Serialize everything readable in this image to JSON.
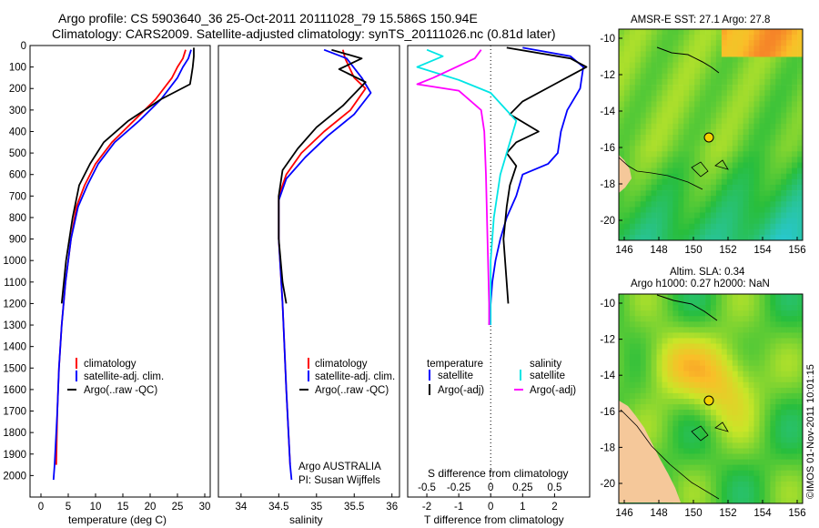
{
  "title": {
    "line1": "Argo profile: CS 5903640_36 25-Oct-2011 20111028_79 15.586S 150.94E",
    "line2": "Climatology: CARS2009. Satellite-adjusted climatology: synTS_20111026.nc (0.81d later)"
  },
  "credit": "©IMOS 01-Nov-2011 10:01:15",
  "colors": {
    "climatology": "#ff0000",
    "satellite": "#0000ff",
    "argo": "#000000",
    "salinity_sat": "#00e5e5",
    "salinity_argo": "#ff00ff"
  },
  "chart_data": [
    {
      "type": "line",
      "name": "temperature-profile",
      "xlabel": "temperature (deg C)",
      "ylabel": "",
      "xlim": [
        -2,
        31
      ],
      "ylim": [
        2100,
        0
      ],
      "xticks": [
        0,
        5,
        10,
        15,
        20,
        25,
        30
      ],
      "yticks": [
        0,
        100,
        200,
        300,
        400,
        500,
        600,
        700,
        800,
        900,
        1000,
        1100,
        1200,
        1300,
        1400,
        1500,
        1600,
        1700,
        1800,
        1900,
        2000
      ],
      "legend": [
        "climatology",
        "satellite-adj. clim.",
        "Argo(..raw -QC)"
      ],
      "series": [
        {
          "name": "climatology",
          "x": [
            26.5,
            26,
            25,
            24,
            21,
            17,
            13,
            10,
            8,
            6.5,
            5.5,
            4.5,
            3.8,
            3.3,
            3,
            2.8
          ],
          "y": [
            20,
            60,
            100,
            150,
            250,
            350,
            450,
            550,
            650,
            750,
            900,
            1100,
            1300,
            1500,
            1700,
            1950
          ]
        },
        {
          "name": "satellite-adj. clim.",
          "x": [
            27.5,
            27,
            26,
            25,
            22,
            18,
            13.5,
            10.5,
            8.5,
            6.8,
            5.5,
            4.5,
            3.8,
            3.3,
            3,
            2.5,
            2.3
          ],
          "y": [
            20,
            60,
            100,
            150,
            250,
            350,
            450,
            550,
            650,
            750,
            900,
            1100,
            1300,
            1500,
            1700,
            1950,
            2020
          ]
        },
        {
          "name": "Argo(..raw -QC)",
          "x": [
            28,
            28,
            27.8,
            27.5,
            27.3,
            22,
            16,
            11.5,
            9,
            7,
            5.8,
            4.6,
            3.8
          ],
          "y": [
            10,
            50,
            100,
            150,
            180,
            250,
            350,
            450,
            550,
            650,
            800,
            1000,
            1200
          ]
        }
      ]
    },
    {
      "type": "line",
      "name": "salinity-profile",
      "xlabel": "salinity",
      "xlim": [
        33.7,
        36.1
      ],
      "ylim": [
        2100,
        0
      ],
      "xticks": [
        34,
        34.5,
        35,
        35.5,
        36
      ],
      "legend": [
        "climatology",
        "satellite-adj. clim.",
        "Argo(..raw -QC)"
      ],
      "annotation": [
        "Argo AUSTRALIA",
        "PI: Susan Wijffels"
      ],
      "series": [
        {
          "name": "climatology",
          "x": [
            35.35,
            35.38,
            35.5,
            35.65,
            35.45,
            35.1,
            34.8,
            34.6,
            34.5,
            34.5,
            34.55,
            34.6,
            34.65
          ],
          "y": [
            20,
            60,
            150,
            200,
            300,
            400,
            500,
            600,
            700,
            900,
            1200,
            1600,
            1950
          ]
        },
        {
          "name": "satellite-adj. clim.",
          "x": [
            35.1,
            35.4,
            35.6,
            35.72,
            35.5,
            35.15,
            34.85,
            34.6,
            34.5,
            34.5,
            34.55,
            34.6,
            34.65,
            34.67
          ],
          "y": [
            20,
            60,
            150,
            220,
            320,
            420,
            520,
            620,
            720,
            900,
            1200,
            1600,
            1950,
            2020
          ]
        },
        {
          "name": "Argo(..raw -QC)",
          "x": [
            35.2,
            35.6,
            35.3,
            35.65,
            35.35,
            35.0,
            34.75,
            34.55,
            34.5,
            34.5,
            34.55,
            34.6
          ],
          "y": [
            20,
            60,
            110,
            170,
            280,
            380,
            480,
            580,
            700,
            900,
            1100,
            1200
          ]
        }
      ]
    },
    {
      "type": "line",
      "name": "difference-profile",
      "xlabel": "T difference from climatology",
      "xlabel_top": "S difference from climatology",
      "xlim": [
        -2.6,
        3.1
      ],
      "ylim": [
        2100,
        0
      ],
      "xticks": [
        -2,
        -1,
        0,
        1,
        2
      ],
      "xticks_top": [
        -0.5,
        -0.25,
        0,
        0.25,
        0.5
      ],
      "legend_headers": [
        "temperature",
        "salinity"
      ],
      "legend": [
        "satellite",
        "Argo(-adj)",
        "satellite",
        "Argo(-adj)"
      ],
      "series": [
        {
          "name": "T satellite",
          "x": [
            1.0,
            2.5,
            2.9,
            2.8,
            2.4,
            2.2,
            2.1,
            1.8,
            1.0,
            0.8,
            0.5,
            0.3,
            0.15,
            0.05,
            0.0,
            -0.05
          ],
          "y": [
            10,
            50,
            100,
            200,
            300,
            400,
            500,
            550,
            600,
            700,
            800,
            900,
            1000,
            1100,
            1200,
            1300
          ]
        },
        {
          "name": "T Argo(-adj)",
          "x": [
            0.5,
            2.5,
            3.0,
            2.0,
            1.0,
            0.6,
            1.5,
            0.8,
            0.5,
            0.8,
            0.6,
            0.5,
            0.4,
            0.55
          ],
          "y": [
            10,
            60,
            100,
            180,
            260,
            320,
            400,
            450,
            500,
            560,
            650,
            750,
            900,
            1200
          ]
        },
        {
          "name": "S satellite",
          "x": [
            -2.0,
            -1.5,
            -2.3,
            -1.0,
            0.0,
            0.8,
            0.5,
            0.3,
            0.1,
            0.0,
            0.0,
            0.0
          ],
          "y": [
            20,
            50,
            100,
            160,
            220,
            350,
            500,
            600,
            800,
            1000,
            1200,
            1300
          ]
        },
        {
          "name": "S Argo(-adj)",
          "x": [
            -0.3,
            -0.5,
            -1.8,
            -2.3,
            -1.0,
            -0.3,
            -0.2,
            -0.15,
            -0.1,
            -0.05,
            -0.05
          ],
          "y": [
            20,
            60,
            150,
            180,
            210,
            300,
            400,
            600,
            900,
            1200,
            1300
          ]
        }
      ]
    }
  ],
  "maps": [
    {
      "name": "sst-map",
      "title": "AMSR-E SST: 27.1  Argo: 27.8",
      "xticks": [
        "146",
        "148",
        "150",
        "152",
        "154",
        "156"
      ],
      "yticks": [
        "-10",
        "-12",
        "-14",
        "-16",
        "-18",
        "-20"
      ]
    },
    {
      "name": "sla-map",
      "title_line1": "Altim. SLA: 0.34",
      "title_line2": "Argo h1000: 0.27 h2000: NaN",
      "xticks": [
        "146",
        "148",
        "150",
        "152",
        "154",
        "156"
      ],
      "yticks": [
        "-10",
        "-12",
        "-14",
        "-16",
        "-18",
        "-20"
      ]
    }
  ]
}
